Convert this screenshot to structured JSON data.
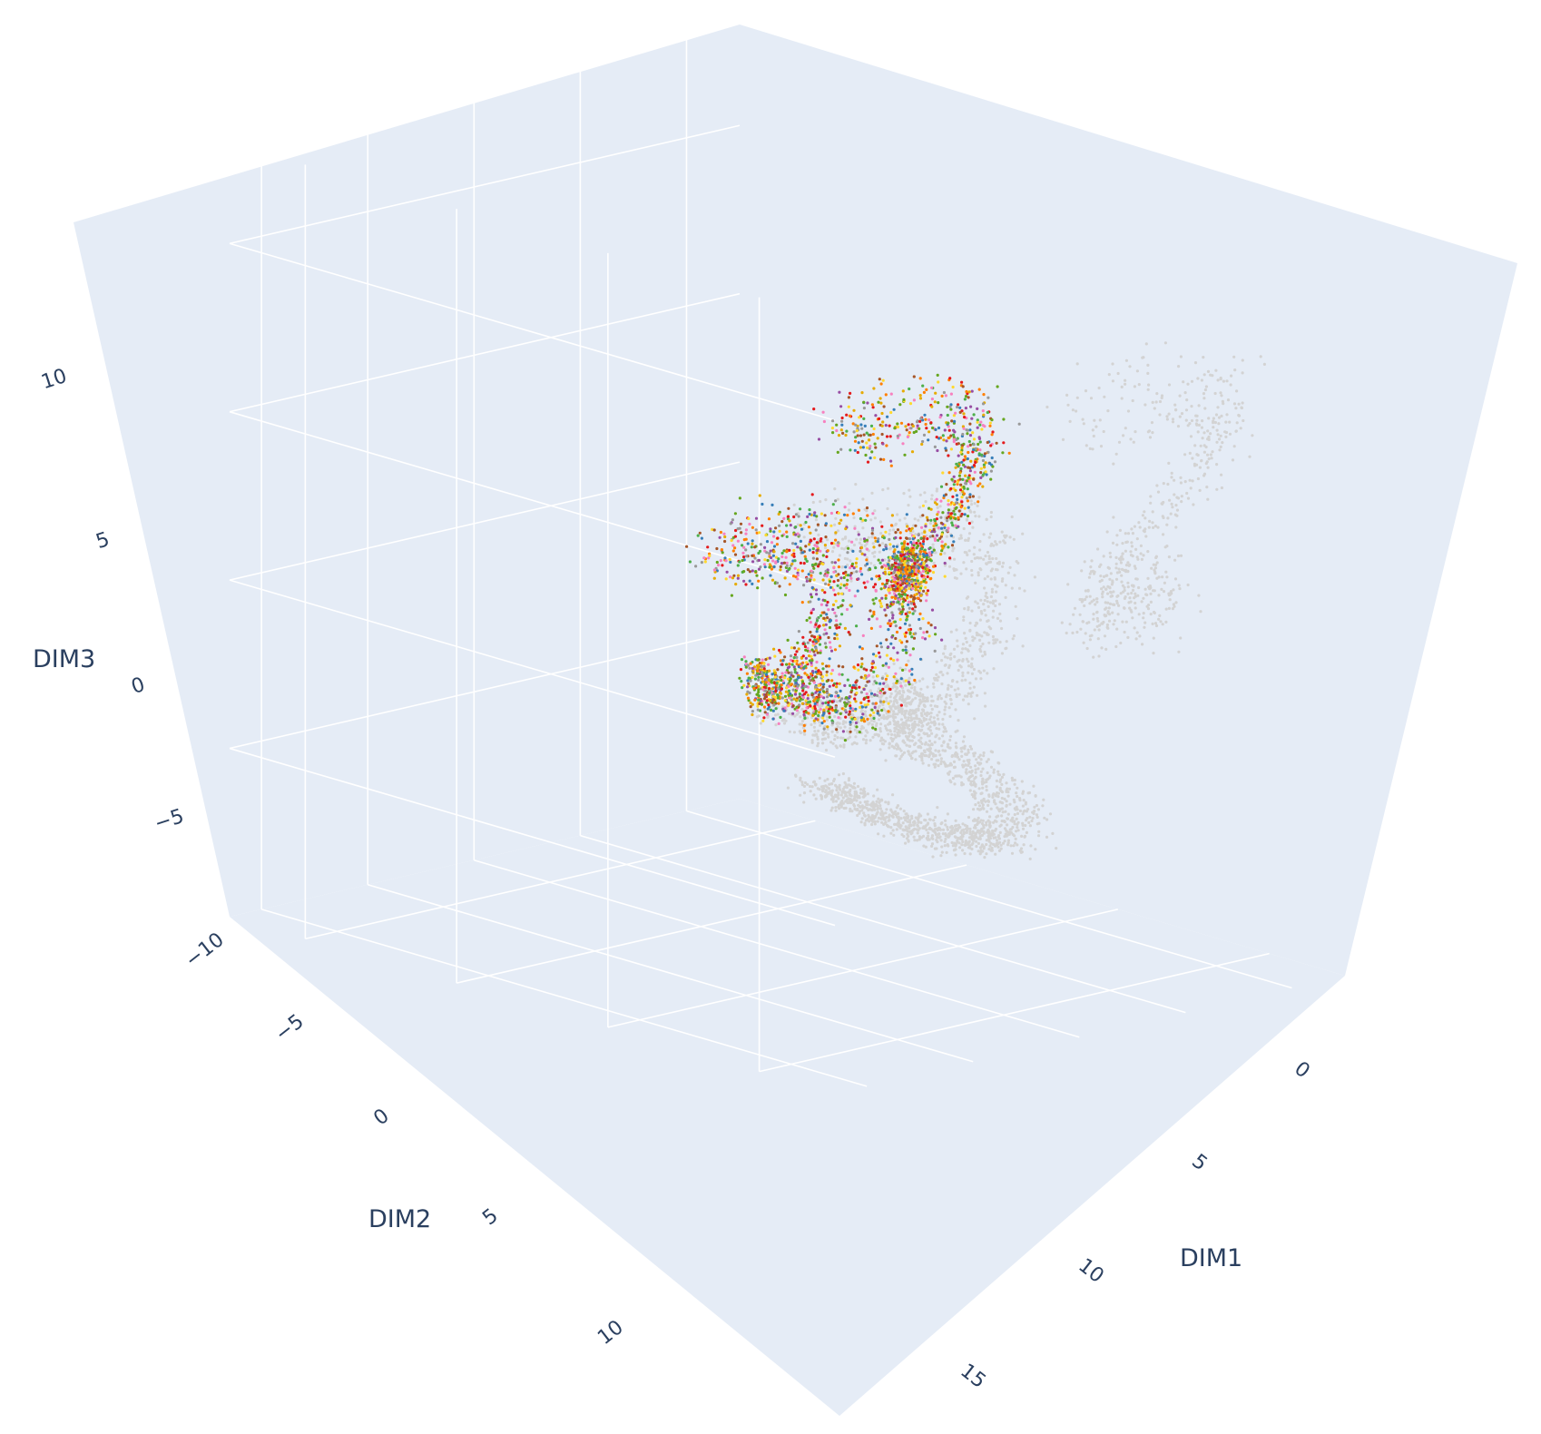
{
  "chart_data": {
    "type": "scatter",
    "dimensions": "3d",
    "axes": {
      "x": {
        "label": "DIM1",
        "ticks": [
          "0",
          "5",
          "10",
          "15"
        ]
      },
      "y": {
        "label": "DIM2",
        "ticks": [
          "−10",
          "−5",
          "0",
          "5",
          "10"
        ]
      },
      "z": {
        "label": "DIM3",
        "ticks": [
          "−5",
          "0",
          "5",
          "10"
        ]
      }
    },
    "background_color": "#e5ecf6",
    "grid": true,
    "legend": "none",
    "colors": {
      "unlabeled": "#d3d3d3",
      "categories": [
        "#e41a1c",
        "#377eb8",
        "#4daf4a",
        "#984ea3",
        "#ff7f00",
        "#ffd92f",
        "#a65628",
        "#f781bf",
        "#999999",
        "#66a61e",
        "#e6ab02"
      ]
    },
    "clusters": [
      {
        "color": "unlabeled",
        "x": [
          5,
          15
        ],
        "y": [
          8,
          12
        ],
        "z": [
          -9,
          -6
        ],
        "density": 1400
      },
      {
        "color": "unlabeled",
        "x": [
          -4,
          4
        ],
        "y": [
          -8,
          0
        ],
        "z": [
          -2,
          5
        ],
        "density": 900
      },
      {
        "color": "unlabeled",
        "x": [
          -6,
          0
        ],
        "y": [
          -4,
          8
        ],
        "z": [
          1,
          9
        ],
        "density": 600
      },
      {
        "color": "mixed",
        "x": [
          0,
          6
        ],
        "y": [
          -4,
          4
        ],
        "z": [
          1,
          7
        ],
        "density": 1100
      },
      {
        "color": "mixed",
        "x": [
          3,
          11
        ],
        "y": [
          -1,
          5
        ],
        "z": [
          -4,
          2
        ],
        "density": 900
      },
      {
        "color": "mixed",
        "x": [
          8,
          14
        ],
        "y": [
          2,
          8
        ],
        "z": [
          -5,
          0
        ],
        "density": 700
      }
    ]
  }
}
